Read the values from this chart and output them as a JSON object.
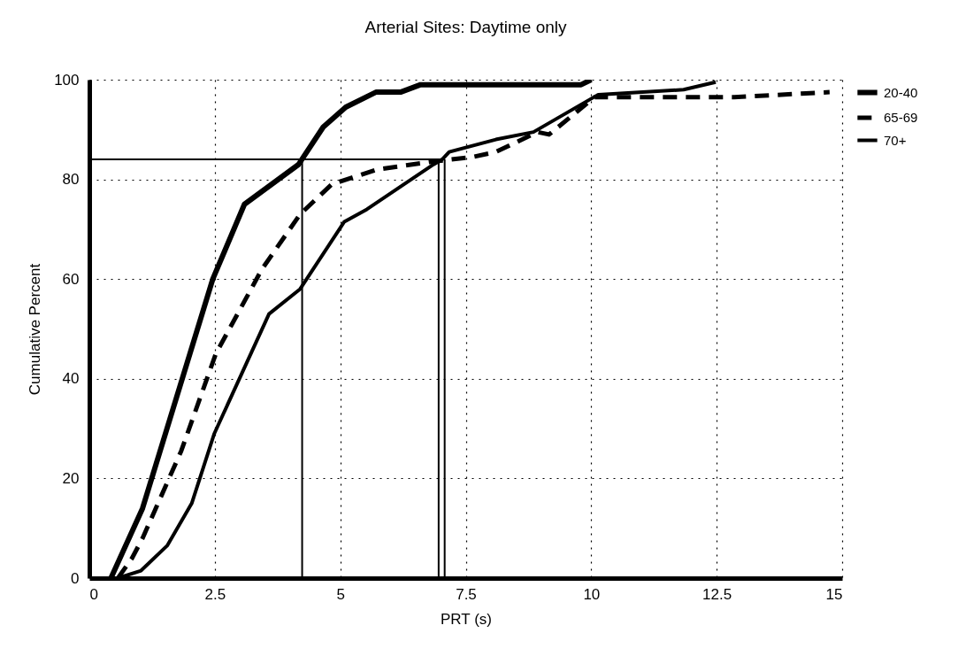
{
  "chart_data": {
    "type": "line",
    "title": "Arterial Sites:  Daytime only",
    "xlabel": "PRT (s)",
    "ylabel": "Cumulative Percent",
    "xlim": [
      0,
      15
    ],
    "xticks": [
      0,
      2.5,
      5,
      7.5,
      10,
      12.5,
      15
    ],
    "ylim": [
      0,
      100
    ],
    "yticks": [
      0,
      20,
      40,
      60,
      80,
      100
    ],
    "grid": true,
    "legend": "top right",
    "marker": "none",
    "series": [
      {
        "name": "20-40",
        "color": "#000000",
        "line_style": "solid",
        "x": [
          0.43,
          1.06,
          2.46,
          3.09,
          4.17,
          4.66,
          5.11,
          5.71,
          6.2,
          6.6,
          9.8,
          10
        ],
        "values": [
          0,
          14,
          60,
          75,
          83,
          90.5,
          94.5,
          97.5,
          97.5,
          99,
          99,
          100
        ]
      },
      {
        "name": "65-69",
        "color": "#000000",
        "line_style": "dashed",
        "x": [
          0.57,
          0.85,
          1.06,
          1.83,
          2.52,
          3.44,
          4.2,
          4.83,
          5.74,
          6.79,
          7.64,
          8.1,
          8.93,
          9.16,
          10.07,
          10.55,
          12.85,
          14.75
        ],
        "values": [
          0,
          4,
          8,
          25.5,
          45,
          62,
          73,
          79,
          82,
          83.5,
          84.5,
          85.5,
          89.5,
          89,
          96.5,
          96.5,
          96.5,
          97.5
        ]
      },
      {
        "name": "70+",
        "color": "#000000",
        "line_style": "solid",
        "x": [
          0.57,
          1.03,
          1.55,
          2.04,
          2.49,
          3.58,
          4.2,
          5.08,
          5.53,
          6.86,
          7.03,
          7.17,
          8.1,
          8.85,
          10.14,
          11.84,
          12.48
        ],
        "values": [
          0,
          1.5,
          6.5,
          15,
          29,
          53,
          58,
          71.5,
          74,
          83,
          84,
          85.5,
          88,
          89.5,
          97,
          98,
          99.5
        ]
      }
    ],
    "ref_lines": [
      {
        "axis": "y",
        "value": 84,
        "color": "#000000"
      },
      {
        "axis": "x",
        "value": 4.24,
        "color": "#000000"
      },
      {
        "axis": "x",
        "value": 6.96,
        "color": "#000000"
      },
      {
        "axis": "x",
        "value": 7.08,
        "color": "#000000"
      }
    ]
  }
}
